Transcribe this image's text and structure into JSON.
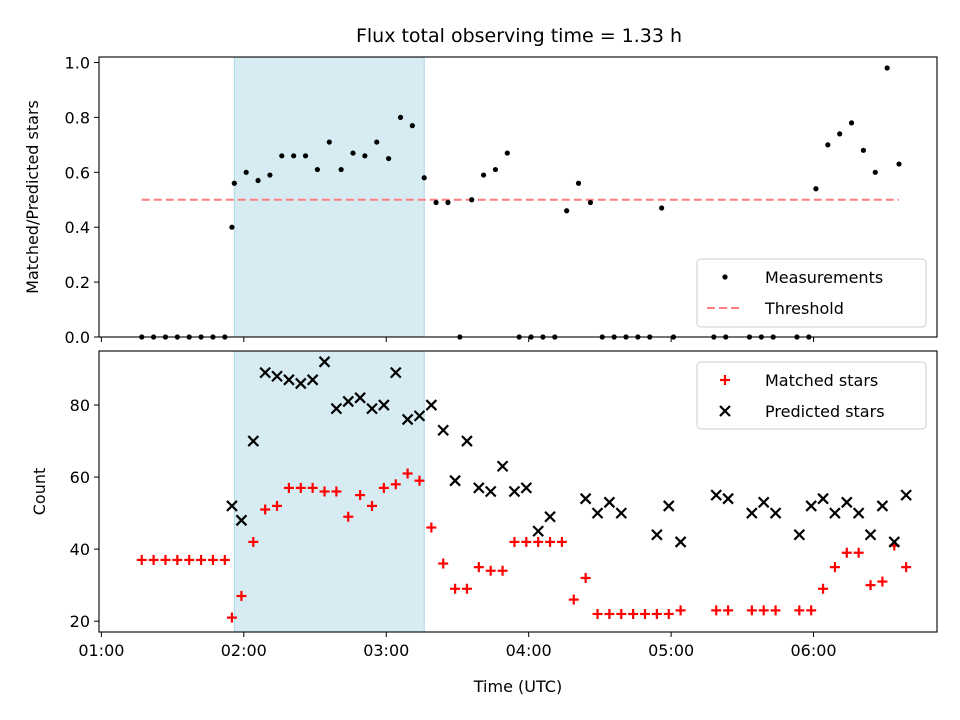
{
  "title": "Flux total observing time = 1.33 h",
  "colors": {
    "measurement": "#000000",
    "threshold": "#ff7f7f",
    "matched": "#ff0000",
    "predicted": "#000000",
    "highlight": "#add8e6"
  },
  "chart_data": [
    {
      "type": "scatter",
      "ylabel": "Matched/Predicted stars",
      "xlabel": "",
      "ylim": [
        0,
        1.02
      ],
      "xlim": [
        "00:59",
        "06:52"
      ],
      "x_ticks": [
        "01:00",
        "02:00",
        "03:00",
        "04:00",
        "05:00",
        "06:00"
      ],
      "y_ticks": [
        "0.0",
        "0.2",
        "0.4",
        "0.6",
        "0.8",
        "1.0"
      ],
      "y_tick_values": [
        0,
        0.2,
        0.4,
        0.6,
        0.8,
        1.0
      ],
      "highlight_span": [
        "01:56",
        "03:16"
      ],
      "legend": {
        "placement": "lower-right",
        "entries": [
          "Measurements",
          "Threshold"
        ]
      },
      "threshold": {
        "name": "Threshold",
        "value": 0.5,
        "x": [
          "01:17",
          "06:36"
        ]
      },
      "series": [
        {
          "name": "Measurements",
          "x": [
            "01:17",
            "01:22",
            "01:27",
            "01:32",
            "01:37",
            "01:42",
            "01:47",
            "01:52",
            "01:55",
            "01:56",
            "02:01",
            "02:06",
            "02:11",
            "02:16",
            "02:21",
            "02:26",
            "02:31",
            "02:36",
            "02:41",
            "02:46",
            "02:51",
            "02:56",
            "03:01",
            "03:06",
            "03:11",
            "03:16",
            "03:21",
            "03:26",
            "03:31",
            "03:36",
            "03:41",
            "03:46",
            "03:51",
            "03:56",
            "04:01",
            "04:06",
            "04:11",
            "04:16",
            "04:21",
            "04:26",
            "04:31",
            "04:36",
            "04:41",
            "04:46",
            "04:51",
            "04:56",
            "05:01",
            "05:18",
            "05:23",
            "05:33",
            "05:38",
            "05:43",
            "05:53",
            "05:58",
            "06:01",
            "06:06",
            "06:11",
            "06:16",
            "06:21",
            "06:26",
            "06:31",
            "06:36"
          ],
          "y": [
            0,
            0,
            0,
            0,
            0,
            0,
            0,
            0,
            0.4,
            0.56,
            0.6,
            0.57,
            0.59,
            0.66,
            0.66,
            0.66,
            0.61,
            0.71,
            0.61,
            0.67,
            0.66,
            0.71,
            0.65,
            0.8,
            0.77,
            0.58,
            0.49,
            0.49,
            0,
            0.5,
            0.59,
            0.61,
            0.67,
            0,
            0,
            0,
            0,
            0.46,
            0.56,
            0.49,
            0,
            0,
            0,
            0,
            0,
            0.47,
            0,
            0,
            0,
            0,
            0,
            0,
            0,
            0,
            0.54,
            0.7,
            0.74,
            0.78,
            0.68,
            0.6,
            0.98,
            0.63
          ]
        }
      ]
    },
    {
      "type": "scatter",
      "ylabel": "Count",
      "xlabel": "Time (UTC)",
      "ylim": [
        17,
        95
      ],
      "xlim": [
        "00:59",
        "06:52"
      ],
      "x_ticks": [
        "01:00",
        "02:00",
        "03:00",
        "04:00",
        "05:00",
        "06:00"
      ],
      "y_ticks": [
        "20",
        "40",
        "60",
        "80"
      ],
      "y_tick_values": [
        20,
        40,
        60,
        80
      ],
      "highlight_span": [
        "01:56",
        "03:16"
      ],
      "legend": {
        "placement": "top-right",
        "entries": [
          "Matched stars",
          "Predicted stars"
        ]
      },
      "series": [
        {
          "name": "Matched stars",
          "x": [
            "01:17",
            "01:22",
            "01:27",
            "01:32",
            "01:37",
            "01:42",
            "01:47",
            "01:52",
            "01:55",
            "01:59",
            "02:04",
            "02:09",
            "02:14",
            "02:19",
            "02:24",
            "02:29",
            "02:34",
            "02:39",
            "02:44",
            "02:49",
            "02:54",
            "02:59",
            "03:04",
            "03:09",
            "03:14",
            "03:19",
            "03:24",
            "03:29",
            "03:34",
            "03:39",
            "03:44",
            "03:49",
            "03:54",
            "03:59",
            "04:04",
            "04:09",
            "04:14",
            "04:19",
            "04:24",
            "04:29",
            "04:34",
            "04:39",
            "04:44",
            "04:49",
            "04:54",
            "04:59",
            "05:04",
            "05:19",
            "05:24",
            "05:34",
            "05:39",
            "05:44",
            "05:54",
            "05:59",
            "06:04",
            "06:09",
            "06:14",
            "06:19",
            "06:24",
            "06:29",
            "06:34",
            "06:39"
          ],
          "y": [
            37,
            37,
            37,
            37,
            37,
            37,
            37,
            37,
            21,
            27,
            42,
            51,
            52,
            57,
            57,
            57,
            56,
            56,
            49,
            55,
            52,
            57,
            58,
            61,
            59,
            46,
            36,
            29,
            29,
            35,
            34,
            34,
            42,
            42,
            42,
            42,
            42,
            26,
            32,
            22,
            22,
            22,
            22,
            22,
            22,
            22,
            23,
            23,
            23,
            23,
            23,
            23,
            23,
            23,
            29,
            35,
            39,
            39,
            30,
            31,
            41,
            35
          ]
        },
        {
          "name": "Predicted stars",
          "x": [
            "01:55",
            "01:59",
            "02:04",
            "02:09",
            "02:14",
            "02:19",
            "02:24",
            "02:29",
            "02:34",
            "02:39",
            "02:44",
            "02:49",
            "02:54",
            "02:59",
            "03:04",
            "03:09",
            "03:14",
            "03:19",
            "03:24",
            "03:29",
            "03:34",
            "03:39",
            "03:44",
            "03:49",
            "03:54",
            "03:59",
            "04:04",
            "04:09",
            "04:24",
            "04:29",
            "04:34",
            "04:39",
            "04:54",
            "04:59",
            "05:04",
            "05:19",
            "05:24",
            "05:34",
            "05:39",
            "05:44",
            "05:54",
            "05:59",
            "06:04",
            "06:09",
            "06:14",
            "06:19",
            "06:24",
            "06:29",
            "06:34",
            "06:39"
          ],
          "y": [
            52,
            48,
            70,
            89,
            88,
            87,
            86,
            87,
            92,
            79,
            81,
            82,
            79,
            80,
            89,
            76,
            77,
            80,
            73,
            59,
            70,
            57,
            56,
            63,
            56,
            57,
            45,
            49,
            54,
            50,
            53,
            50,
            44,
            52,
            42,
            55,
            54,
            50,
            53,
            50,
            44,
            52,
            54,
            50,
            53,
            50,
            44,
            52,
            42,
            55
          ]
        }
      ]
    }
  ]
}
